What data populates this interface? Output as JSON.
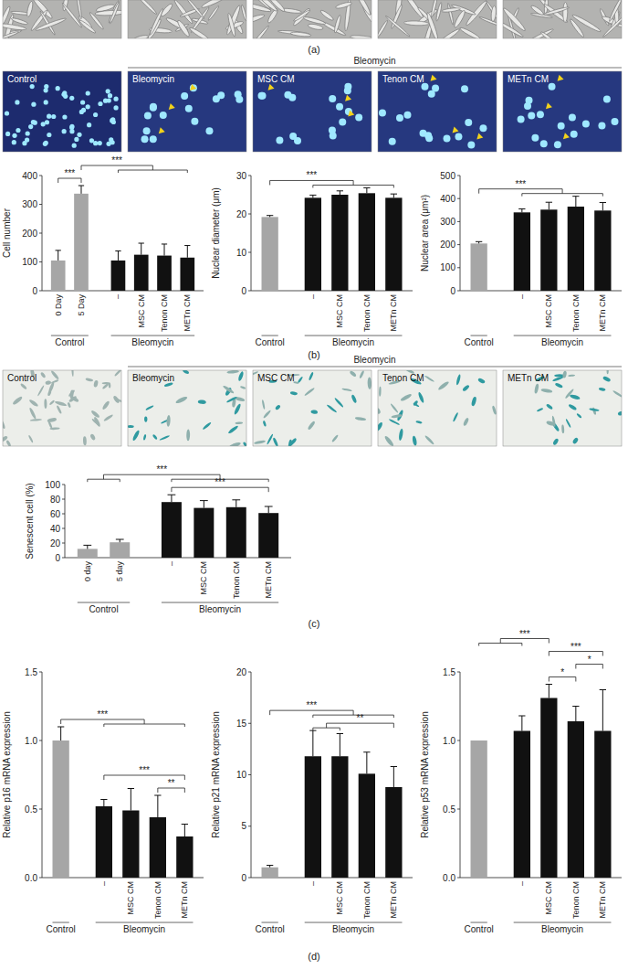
{
  "panel_labels": [
    "(a)",
    "(b)",
    "(c)",
    "(d)"
  ],
  "image_rows": [
    {
      "header": "Bleomycin",
      "labels": [
        "Control",
        "Bleomycin",
        "MSC CM",
        "Tenon CM",
        "METn CM"
      ]
    },
    {
      "header": "Bleomycin",
      "labels": [
        "Control",
        "Bleomycin",
        "MSC CM",
        "Tenon CM",
        "METn CM"
      ]
    }
  ],
  "chart_data": [
    {
      "type": "bar",
      "y_label": "Cell number",
      "categories": [
        "0 Day",
        "5 Day",
        "–",
        "MSC CM",
        "Tenon CM",
        "METn CM"
      ],
      "groups": [
        "Control",
        "Control",
        "Bleomycin",
        "Bleomycin",
        "Bleomycin",
        "Bleomycin"
      ],
      "values": [
        105,
        337,
        105,
        125,
        122,
        115
      ],
      "errors": [
        35,
        28,
        33,
        40,
        40,
        42
      ],
      "colors": [
        "#a6a6a6",
        "#a6a6a6",
        "#111111",
        "#111111",
        "#111111",
        "#111111"
      ],
      "ylim": [
        0,
        400
      ],
      "yticks": [
        0,
        100,
        200,
        300,
        400
      ],
      "significance": [
        {
          "label": "***",
          "from": [
            0
          ],
          "to": [
            1
          ]
        },
        {
          "label": "***",
          "from": [
            1
          ],
          "to": [
            2,
            3,
            4,
            5
          ]
        }
      ]
    },
    {
      "type": "bar",
      "y_label": "Nuclear diameter (μm)",
      "categories": [
        null,
        "–",
        "MSC CM",
        "Tenon CM",
        "METn CM"
      ],
      "groups": [
        "Control",
        "Bleomycin",
        "Bleomycin",
        "Bleomycin",
        "Bleomycin"
      ],
      "values": [
        19.2,
        24.2,
        25.0,
        25.4,
        24.2
      ],
      "errors": [
        0.4,
        0.7,
        1.0,
        1.4,
        1.0
      ],
      "colors": [
        "#a6a6a6",
        "#111111",
        "#111111",
        "#111111",
        "#111111"
      ],
      "ylim": [
        0,
        30
      ],
      "yticks": [
        0,
        10,
        20,
        30
      ],
      "significance": [
        {
          "label": "***",
          "from": [
            0
          ],
          "to": [
            1,
            2,
            3,
            4
          ]
        }
      ]
    },
    {
      "type": "bar",
      "y_label": "Nuclear area (μm²)",
      "categories": [
        null,
        "–",
        "MSC CM",
        "Tenon CM",
        "METn CM"
      ],
      "groups": [
        "Control",
        "Bleomycin",
        "Bleomycin",
        "Bleomycin",
        "Bleomycin"
      ],
      "values": [
        205,
        340,
        352,
        365,
        348
      ],
      "errors": [
        8,
        15,
        32,
        45,
        35
      ],
      "colors": [
        "#a6a6a6",
        "#111111",
        "#111111",
        "#111111",
        "#111111"
      ],
      "ylim": [
        0,
        500
      ],
      "yticks": [
        0,
        100,
        200,
        300,
        400,
        500
      ],
      "significance": [
        {
          "label": "***",
          "from": [
            0
          ],
          "to": [
            1,
            2,
            3,
            4
          ]
        }
      ]
    },
    {
      "type": "bar",
      "y_label": "Senescent cell (%)",
      "categories": [
        "0 day",
        "5 day",
        "–",
        "MSC CM",
        "Tenon CM",
        "METn CM"
      ],
      "groups": [
        "Control",
        "Control",
        "Bleomycin",
        "Bleomycin",
        "Bleomycin",
        "Bleomycin"
      ],
      "values": [
        12,
        21,
        76,
        68,
        69,
        61
      ],
      "errors": [
        5,
        4,
        10,
        10,
        10,
        9
      ],
      "colors": [
        "#a6a6a6",
        "#a6a6a6",
        "#111111",
        "#111111",
        "#111111",
        "#111111"
      ],
      "ylim": [
        0,
        100
      ],
      "yticks": [
        0,
        20,
        40,
        60,
        80,
        100
      ],
      "significance": [
        {
          "label": "***",
          "from": [
            2
          ],
          "to": [
            5
          ]
        },
        {
          "label": "***",
          "from": [
            0,
            1
          ],
          "to": [
            2,
            3,
            4,
            5
          ]
        }
      ]
    },
    {
      "type": "bar",
      "y_label": "Relative p16 mRNA expression",
      "categories": [
        null,
        "–",
        "MSC CM",
        "Tenon CM",
        "METn CM"
      ],
      "groups": [
        "Control",
        "Bleomycin",
        "Bleomycin",
        "Bleomycin",
        "Bleomycin"
      ],
      "values": [
        1.0,
        0.52,
        0.49,
        0.44,
        0.3
      ],
      "errors": [
        0.1,
        0.05,
        0.16,
        0.16,
        0.09
      ],
      "colors": [
        "#a6a6a6",
        "#111111",
        "#111111",
        "#111111",
        "#111111"
      ],
      "ylim": [
        0,
        1.5
      ],
      "yticks": [
        {
          "value": 0,
          "label": "0.0"
        },
        {
          "value": 0.5,
          "label": "0.5"
        },
        {
          "value": 1,
          "label": "1.0"
        },
        {
          "value": 1.5,
          "label": "1.5"
        }
      ],
      "significance": [
        {
          "label": "**",
          "from": [
            3
          ],
          "to": [
            4
          ]
        },
        {
          "label": "***",
          "from": [
            1
          ],
          "to": [
            4
          ]
        },
        {
          "label": "***",
          "from": [
            0
          ],
          "to": [
            1,
            2,
            3,
            4
          ]
        }
      ]
    },
    {
      "type": "bar",
      "y_label": "Relative p21 mRNA expression",
      "categories": [
        null,
        "–",
        "MSC CM",
        "Tenon CM",
        "METn CM"
      ],
      "groups": [
        "Control",
        "Bleomycin",
        "Bleomycin",
        "Bleomycin",
        "Bleomycin"
      ],
      "values": [
        1.0,
        11.8,
        11.8,
        10.1,
        8.8
      ],
      "errors": [
        0.2,
        2.5,
        2.2,
        2.1,
        2.0
      ],
      "colors": [
        "#a6a6a6",
        "#111111",
        "#111111",
        "#111111",
        "#111111"
      ],
      "ylim": [
        0,
        20
      ],
      "yticks": [
        0,
        5,
        10,
        15,
        20
      ],
      "significance": [
        {
          "label": "**",
          "from": [
            1,
            2
          ],
          "to": [
            4
          ]
        },
        {
          "label": "***",
          "from": [
            0
          ],
          "to": [
            1,
            2,
            3,
            4
          ]
        }
      ]
    },
    {
      "type": "bar",
      "y_label": "Relative p53 mRNA expression",
      "categories": [
        null,
        "–",
        "MSC CM",
        "Tenon CM",
        "METn CM"
      ],
      "groups": [
        "Control",
        "Bleomycin",
        "Bleomycin",
        "Bleomycin",
        "Bleomycin"
      ],
      "values": [
        1.0,
        1.07,
        1.31,
        1.14,
        1.07
      ],
      "errors": [
        null,
        0.11,
        0.1,
        0.11,
        0.3
      ],
      "colors": [
        "#a6a6a6",
        "#111111",
        "#111111",
        "#111111",
        "#111111"
      ],
      "ylim": [
        0,
        1.5
      ],
      "yticks": [
        {
          "value": 0,
          "label": "0.0"
        },
        {
          "value": 0.5,
          "label": "0.5"
        },
        {
          "value": 1,
          "label": "1.0"
        },
        {
          "value": 1.5,
          "label": "1.5"
        }
      ],
      "significance": [
        {
          "label": "*",
          "from": [
            2
          ],
          "to": [
            3
          ]
        },
        {
          "label": "*",
          "from": [
            3
          ],
          "to": [
            4
          ]
        },
        {
          "label": "***",
          "from": [
            2
          ],
          "to": [
            4
          ]
        },
        {
          "label": "***",
          "from": [
            0,
            1
          ],
          "to": [
            2
          ]
        }
      ]
    }
  ]
}
